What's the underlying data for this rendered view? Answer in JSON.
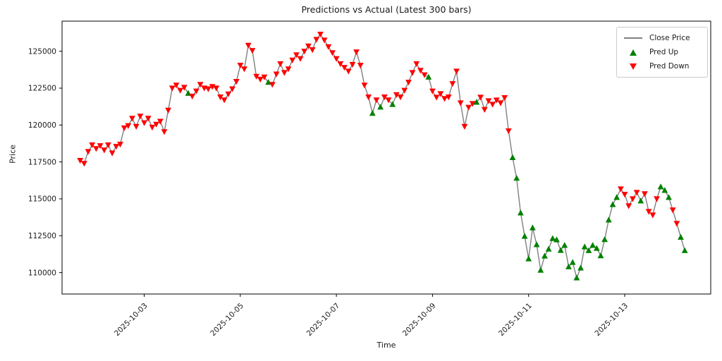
{
  "figure": {
    "title": "Predictions vs Actual (Latest 300 bars)",
    "xlabel": "Time",
    "ylabel": "Price"
  },
  "legend": {
    "position": "upper right",
    "items": [
      {
        "label": "Close Price",
        "type": "line",
        "color": "#808080"
      },
      {
        "label": "Pred Up",
        "type": "triangle-up",
        "color": "#008000"
      },
      {
        "label": "Pred Down",
        "type": "triangle-down",
        "color": "#ff0000"
      }
    ]
  },
  "chart_data": {
    "type": "line",
    "title": "Predictions vs Actual (Latest 300 bars)",
    "xlabel": "Time",
    "ylabel": "Price",
    "grid": false,
    "legend_position": "upper right",
    "line_color": "#808080",
    "up_color": "#008000",
    "down_color": "#ff0000",
    "x_start": "2025-10-01 16:00",
    "x_step_hours": 2,
    "x_start_day": 0.667,
    "x_step_days": 0.083333,
    "xlim_days": [
      0.29,
      13.79
    ],
    "ylim": [
      108550,
      127040
    ],
    "xticks": [
      {
        "day": 2,
        "label": "2025-10-03"
      },
      {
        "day": 4,
        "label": "2025-10-05"
      },
      {
        "day": 6,
        "label": "2025-10-07"
      },
      {
        "day": 8,
        "label": "2025-10-09"
      },
      {
        "day": 10,
        "label": "2025-10-11"
      },
      {
        "day": 12,
        "label": "2025-10-13"
      }
    ],
    "yticks": [
      110000,
      112500,
      115000,
      117500,
      120000,
      122500,
      125000
    ],
    "n_points": 152,
    "close": [
      117600,
      117400,
      118200,
      118650,
      118400,
      118600,
      118300,
      118650,
      118100,
      118550,
      118700,
      119800,
      119950,
      120450,
      119900,
      120600,
      120150,
      120450,
      119850,
      120050,
      120250,
      119550,
      121000,
      122500,
      122700,
      122350,
      122550,
      122150,
      121950,
      122300,
      122750,
      122500,
      122450,
      122600,
      122500,
      121900,
      121700,
      122100,
      122450,
      122950,
      124050,
      123800,
      125400,
      125050,
      123300,
      123100,
      123250,
      122900,
      122750,
      123450,
      124150,
      123550,
      123800,
      124400,
      124750,
      124500,
      125000,
      125350,
      125100,
      125800,
      126150,
      125750,
      125300,
      124900,
      124500,
      124150,
      123900,
      123650,
      124100,
      124950,
      124050,
      122700,
      121900,
      120800,
      121700,
      121220,
      121900,
      121700,
      121400,
      122050,
      121900,
      122350,
      122900,
      123550,
      124150,
      123700,
      123400,
      123250,
      122300,
      121880,
      122120,
      121790,
      121900,
      122800,
      123650,
      121500,
      119900,
      121200,
      121450,
      121550,
      121880,
      121050,
      121640,
      121400,
      121690,
      121500,
      121850,
      119600,
      117800,
      116400,
      114050,
      112470,
      110940,
      113040,
      111900,
      110170,
      111130,
      111600,
      112320,
      112230,
      111510,
      111850,
      110400,
      110700,
      109650,
      110320,
      111750,
      111500,
      111850,
      111650,
      111150,
      112250,
      113570,
      114620,
      115100,
      115670,
      115300,
      114520,
      115000,
      115430,
      114860,
      115340,
      114140,
      113900,
      115000,
      115815,
      115580,
      115100,
      114240,
      113330,
      112400,
      111500
    ],
    "signal_runs": [
      [
        27,
        "D"
      ],
      [
        1,
        "U"
      ],
      [
        19,
        "D"
      ],
      [
        1,
        "U"
      ],
      [
        25,
        "D"
      ],
      [
        1,
        "U"
      ],
      [
        1,
        "D"
      ],
      [
        1,
        "U"
      ],
      [
        2,
        "D"
      ],
      [
        1,
        "U"
      ],
      [
        8,
        "D"
      ],
      [
        1,
        "U"
      ],
      [
        11,
        "D"
      ],
      [
        1,
        "U"
      ],
      [
        8,
        "D"
      ],
      [
        27,
        "U"
      ],
      [
        5,
        "D"
      ],
      [
        1,
        "U"
      ],
      [
        4,
        "D"
      ],
      [
        3,
        "U"
      ],
      [
        2,
        "D"
      ],
      [
        2,
        "U"
      ]
    ]
  }
}
